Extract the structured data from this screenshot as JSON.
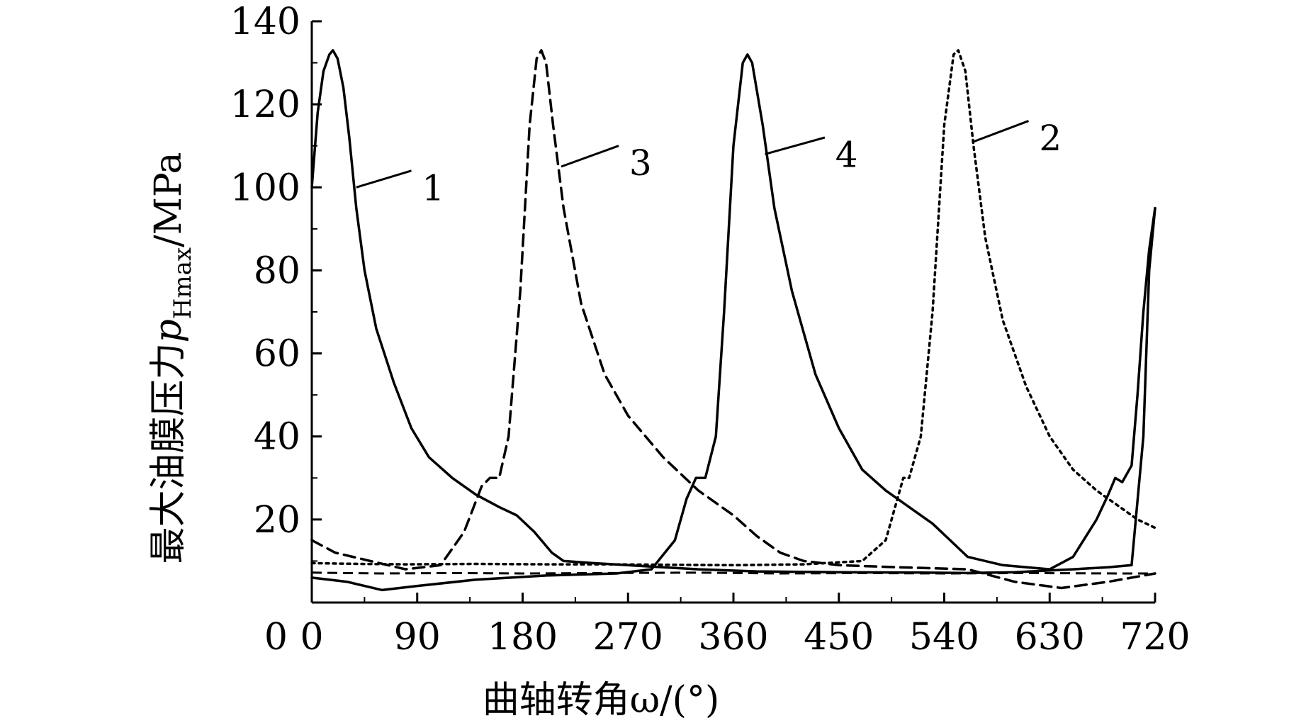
{
  "chart_data": {
    "type": "line",
    "xlabel": "曲轴转角ω/(°)",
    "ylabel": {
      "prefix": "最大油膜压力",
      "symbol": "p",
      "subscript": "Hmax",
      "suffix": "/MPa"
    },
    "xlim": [
      0,
      720
    ],
    "ylim": [
      0,
      140
    ],
    "x_ticks": [
      0,
      90,
      180,
      270,
      360,
      450,
      540,
      630,
      720
    ],
    "y_ticks": [
      20,
      40,
      60,
      80,
      100,
      120,
      140
    ],
    "grid": false,
    "legend": "none",
    "series": [
      {
        "name": "1",
        "line_style": "solid",
        "points": [
          [
            0,
            100
          ],
          [
            5,
            118
          ],
          [
            10,
            128
          ],
          [
            15,
            132
          ],
          [
            18,
            133
          ],
          [
            22,
            131
          ],
          [
            27,
            124
          ],
          [
            32,
            112
          ],
          [
            38,
            95
          ],
          [
            45,
            80
          ],
          [
            55,
            66
          ],
          [
            70,
            53
          ],
          [
            85,
            42
          ],
          [
            100,
            35
          ],
          [
            120,
            30
          ],
          [
            140,
            26
          ],
          [
            160,
            23
          ],
          [
            175,
            21
          ],
          [
            190,
            17
          ],
          [
            205,
            12
          ],
          [
            215,
            10
          ],
          [
            240,
            9.5
          ],
          [
            270,
            9
          ],
          [
            300,
            8.5
          ],
          [
            330,
            8
          ],
          [
            380,
            7.5
          ],
          [
            450,
            7.3
          ],
          [
            520,
            7.2
          ],
          [
            560,
            7.1
          ],
          [
            600,
            7.3
          ],
          [
            650,
            8
          ],
          [
            680,
            8.5
          ],
          [
            700,
            9
          ],
          [
            710,
            40
          ],
          [
            715,
            80
          ],
          [
            720,
            95
          ]
        ],
        "low_points": [
          [
            0,
            7.2
          ],
          [
            60,
            7
          ],
          [
            120,
            7.1
          ],
          [
            180,
            7
          ],
          [
            250,
            7.1
          ],
          [
            330,
            7.2
          ],
          [
            400,
            7
          ],
          [
            470,
            7.1
          ],
          [
            540,
            7
          ],
          [
            610,
            7.1
          ],
          [
            690,
            7
          ],
          [
            720,
            7
          ]
        ]
      },
      {
        "name": "2",
        "line_style": "dotted",
        "points": [
          [
            0,
            9.5
          ],
          [
            40,
            9.3
          ],
          [
            80,
            9.2
          ],
          [
            140,
            9.3
          ],
          [
            200,
            9.2
          ],
          [
            250,
            9.2
          ],
          [
            300,
            9.1
          ],
          [
            360,
            9
          ],
          [
            420,
            9.2
          ],
          [
            470,
            10
          ],
          [
            490,
            15
          ],
          [
            500,
            25
          ],
          [
            505,
            30
          ],
          [
            510,
            30
          ],
          [
            520,
            40
          ],
          [
            530,
            70
          ],
          [
            540,
            115
          ],
          [
            548,
            132
          ],
          [
            552,
            133
          ],
          [
            558,
            128
          ],
          [
            565,
            110
          ],
          [
            575,
            88
          ],
          [
            590,
            68
          ],
          [
            610,
            52
          ],
          [
            630,
            40
          ],
          [
            650,
            32
          ],
          [
            670,
            27
          ],
          [
            690,
            23
          ],
          [
            705,
            20
          ],
          [
            720,
            18
          ]
        ]
      },
      {
        "name": "3",
        "line_style": "dashed",
        "points": [
          [
            0,
            15
          ],
          [
            20,
            12
          ],
          [
            50,
            10
          ],
          [
            80,
            8
          ],
          [
            110,
            9
          ],
          [
            130,
            17
          ],
          [
            145,
            28
          ],
          [
            152,
            30
          ],
          [
            160,
            30
          ],
          [
            168,
            40
          ],
          [
            178,
            75
          ],
          [
            186,
            115
          ],
          [
            192,
            131
          ],
          [
            196,
            133
          ],
          [
            200,
            130
          ],
          [
            206,
            115
          ],
          [
            215,
            95
          ],
          [
            230,
            72
          ],
          [
            250,
            55
          ],
          [
            270,
            45
          ],
          [
            300,
            35
          ],
          [
            330,
            27
          ],
          [
            360,
            21
          ],
          [
            380,
            16
          ],
          [
            400,
            12
          ],
          [
            420,
            10
          ],
          [
            450,
            9
          ],
          [
            500,
            8.5
          ],
          [
            560,
            8
          ],
          [
            600,
            5
          ],
          [
            640,
            3.5
          ],
          [
            680,
            5
          ],
          [
            700,
            6
          ],
          [
            720,
            7
          ]
        ]
      },
      {
        "name": "4",
        "line_style": "solid",
        "points": [
          [
            0,
            6
          ],
          [
            30,
            5
          ],
          [
            45,
            4
          ],
          [
            60,
            3
          ],
          [
            90,
            4
          ],
          [
            140,
            5.5
          ],
          [
            200,
            6.5
          ],
          [
            260,
            7
          ],
          [
            290,
            8
          ],
          [
            310,
            15
          ],
          [
            320,
            25
          ],
          [
            328,
            30
          ],
          [
            336,
            30
          ],
          [
            345,
            40
          ],
          [
            352,
            70
          ],
          [
            360,
            110
          ],
          [
            368,
            130
          ],
          [
            372,
            132
          ],
          [
            376,
            130
          ],
          [
            385,
            115
          ],
          [
            395,
            95
          ],
          [
            410,
            75
          ],
          [
            430,
            55
          ],
          [
            450,
            42
          ],
          [
            470,
            32
          ],
          [
            490,
            27
          ],
          [
            510,
            23
          ],
          [
            530,
            19
          ],
          [
            545,
            15
          ],
          [
            560,
            11
          ],
          [
            590,
            9
          ],
          [
            630,
            8
          ],
          [
            650,
            11
          ],
          [
            670,
            20
          ],
          [
            680,
            26
          ],
          [
            686,
            30
          ],
          [
            692,
            29
          ],
          [
            700,
            33
          ],
          [
            705,
            50
          ],
          [
            710,
            70
          ],
          [
            715,
            85
          ],
          [
            720,
            95
          ]
        ]
      }
    ],
    "annotations": [
      {
        "text": "1",
        "series": "1"
      },
      {
        "text": "3",
        "series": "3"
      },
      {
        "text": "4",
        "series": "4"
      },
      {
        "text": "2",
        "series": "2"
      }
    ]
  }
}
